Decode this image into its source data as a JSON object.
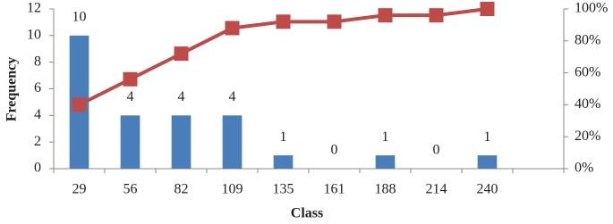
{
  "chart_data": {
    "type": "pareto",
    "x_label": "Class",
    "y_label": "Frequency",
    "categories": [
      "29",
      "56",
      "82",
      "109",
      "135",
      "161",
      "188",
      "214",
      "240",
      null
    ],
    "series": [
      {
        "type": "bar",
        "color": "#4a7ebb",
        "values": [
          10,
          4,
          4,
          4,
          1,
          0,
          1,
          0,
          1,
          null
        ]
      },
      {
        "type": "line",
        "axis": "y2",
        "color": "#be4b48",
        "values": [
          40,
          56,
          72,
          88,
          92,
          92,
          96,
          96,
          100,
          null
        ]
      }
    ],
    "ylim": [
      0,
      12
    ],
    "yticks": [
      0,
      2,
      4,
      6,
      8,
      10,
      12
    ],
    "y2lim": [
      0,
      100
    ],
    "y2ticks": [
      {
        "value": 0,
        "label": "0%"
      },
      {
        "value": 20,
        "label": "20%"
      },
      {
        "value": 40,
        "label": "40%"
      },
      {
        "value": 60,
        "label": "60%"
      },
      {
        "value": 80,
        "label": "80%"
      },
      {
        "value": 100,
        "label": "100%"
      }
    ]
  }
}
